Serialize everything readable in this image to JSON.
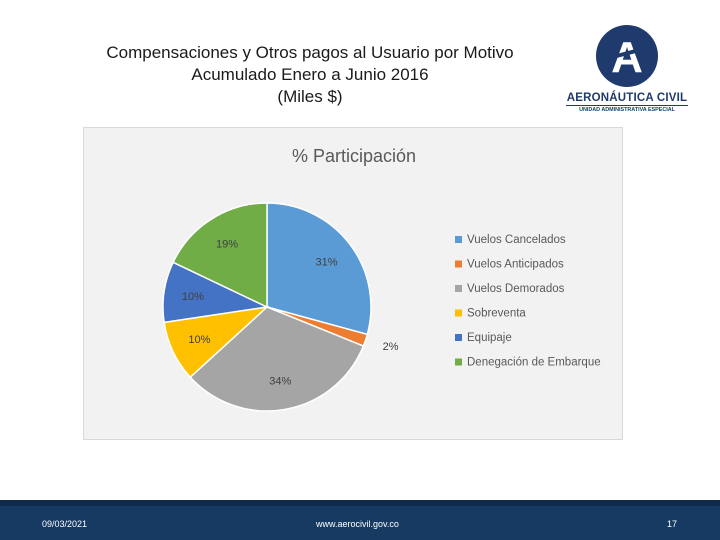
{
  "slide": {
    "title_lines": [
      "Compensaciones y Otros pagos al Usuario por Motivo",
      "Acumulado Enero a Junio 2016",
      "(Miles $)"
    ]
  },
  "logo": {
    "name": "AERONÁUTICA CIVIL",
    "subtitle": "UNIDAD ADMINISTRATIVA ESPECIAL",
    "letter": "A",
    "icon": "aerocivil-logo-icon",
    "color": "#1f3a6d"
  },
  "chart_data": {
    "type": "pie",
    "title": "% Participación",
    "legend_position": "right",
    "series": [
      {
        "name": "Vuelos Cancelados",
        "value": 31,
        "label": "31%",
        "color": "#5b9bd5"
      },
      {
        "name": "Vuelos Anticipados",
        "value": 2,
        "label": "2%",
        "color": "#ed7d31"
      },
      {
        "name": "Vuelos Demorados",
        "value": 34,
        "label": "34%",
        "color": "#a5a5a5"
      },
      {
        "name": "Sobreventa",
        "value": 10,
        "label": "10%",
        "color": "#ffc000"
      },
      {
        "name": "Equipaje",
        "value": 10,
        "label": "10%",
        "color": "#4472c4"
      },
      {
        "name": "Denegación de Embarque",
        "value": 19,
        "label": "19%",
        "color": "#70ad47"
      }
    ]
  },
  "footer": {
    "date": "09/03/2021",
    "url": "www.aerocivil.gov.co",
    "page": "17"
  }
}
